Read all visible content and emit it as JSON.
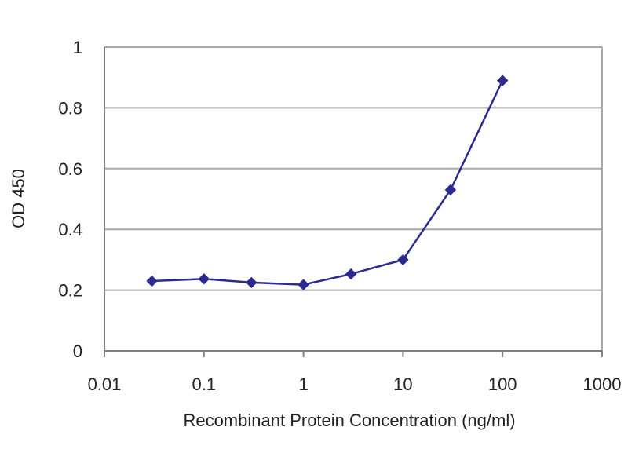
{
  "chart_data": {
    "type": "line",
    "title": "",
    "xlabel": "Recombinant Protein Concentration (ng/ml)",
    "ylabel": "OD 450",
    "xscale": "log",
    "xlim": [
      0.01,
      1000
    ],
    "ylim": [
      0,
      1
    ],
    "x_ticks": [
      "0.01",
      "0.1",
      "1",
      "10",
      "100",
      "1000"
    ],
    "y_ticks": [
      "0",
      "0.2",
      "0.4",
      "0.6",
      "0.8",
      "1"
    ],
    "grid": "horizontal",
    "legend": "none",
    "series": [
      {
        "color": "#2b2b8f",
        "marker": "diamond",
        "x": [
          0.03,
          0.1,
          0.3,
          1,
          3,
          10,
          30,
          100
        ],
        "y": [
          0.23,
          0.237,
          0.225,
          0.218,
          0.253,
          0.3,
          0.53,
          0.89
        ]
      }
    ],
    "colors": {
      "grid": "#a8a8a8",
      "axis": "#808080",
      "line": "#2b2b8f"
    }
  }
}
